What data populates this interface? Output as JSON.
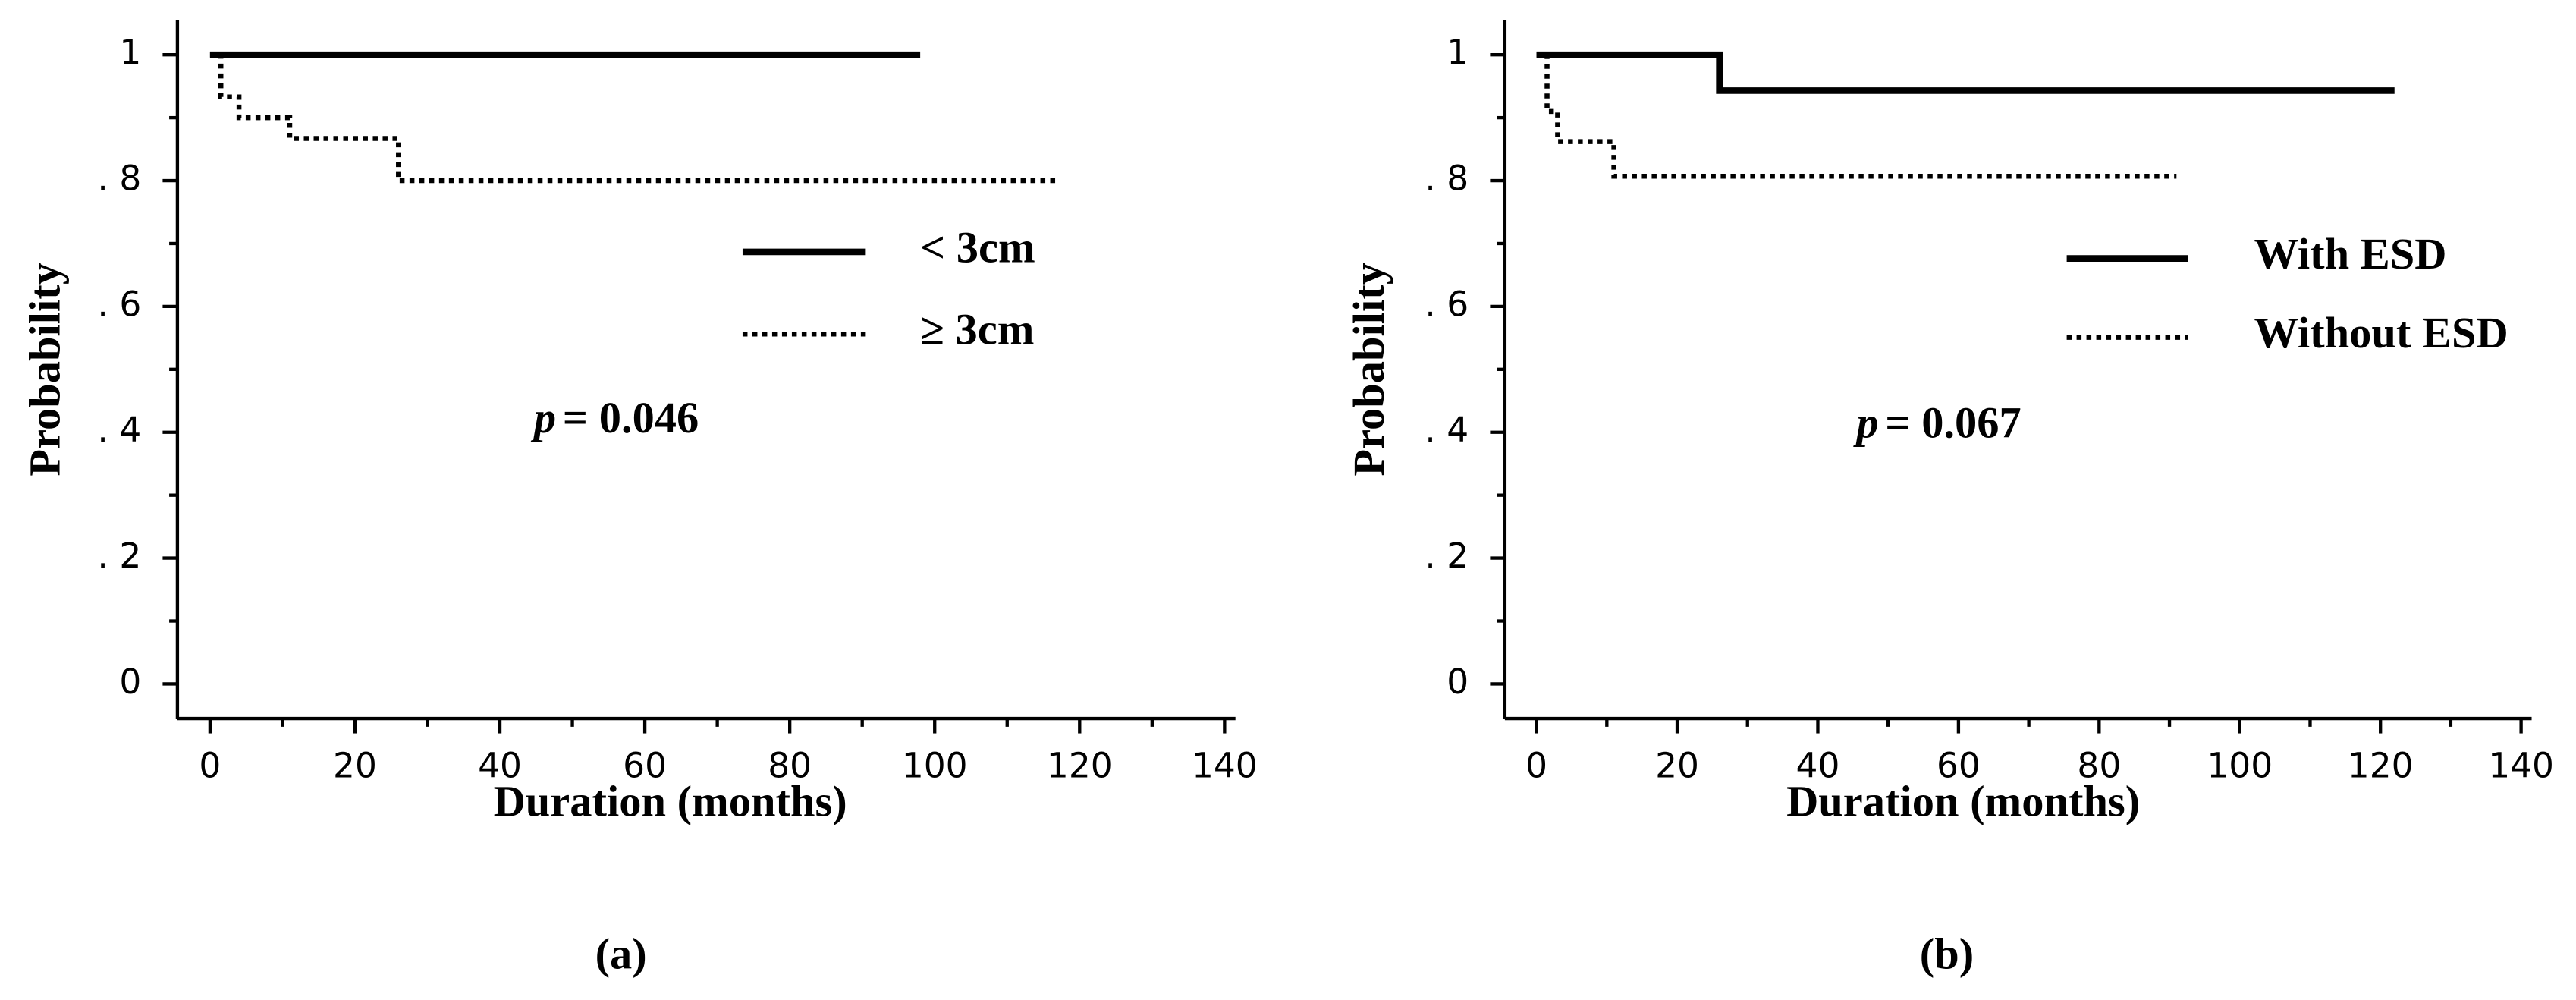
{
  "chart_data": [
    {
      "type": "line",
      "label": "(a)",
      "xlabel": "Duration (months)",
      "ylabel": "Probability",
      "xlim": [
        -4.5,
        141.5
      ],
      "ylim": [
        -0.055,
        1.055
      ],
      "xticks": [
        0,
        20,
        40,
        60,
        80,
        100,
        120,
        140
      ],
      "xminorticks": [
        10,
        30,
        50,
        70,
        90,
        110,
        130
      ],
      "yticks": [
        0,
        {
          "value": 0.2,
          "label": ". 2"
        },
        {
          "value": 0.4,
          "label": ". 4"
        },
        {
          "value": 0.6,
          "label": ". 6"
        },
        {
          "value": 0.8,
          "label": ". 8"
        },
        1
      ],
      "yminorticks": [
        0.1,
        0.3,
        0.5,
        0.7,
        0.9
      ],
      "pvalue_symbol": "p",
      "pvalue_text": "= 0.046",
      "series": [
        {
          "name": "< 3cm",
          "color": "#000000",
          "linestyle": "solid",
          "x": [
            0,
            98
          ],
          "values": [
            1,
            1
          ]
        },
        {
          "name": "≥ 3cm",
          "color": "#000000",
          "linestyle": "dotted",
          "x": [
            0,
            1.5,
            1.5,
            4,
            4,
            11,
            11,
            26,
            26,
            117
          ],
          "values": [
            1,
            1,
            0.933,
            0.933,
            0.9,
            0.9,
            0.867,
            0.867,
            0.8,
            0.8
          ]
        }
      ]
    },
    {
      "type": "line",
      "label": "(b)",
      "xlabel": "Duration (months)",
      "ylabel": "Probability",
      "xlim": [
        -4.5,
        141.5
      ],
      "ylim": [
        -0.055,
        1.055
      ],
      "xticks": [
        0,
        20,
        40,
        60,
        80,
        100,
        120,
        140
      ],
      "xminorticks": [
        10,
        30,
        50,
        70,
        90,
        110,
        130
      ],
      "yticks": [
        0,
        {
          "value": 0.2,
          "label": ". 2"
        },
        {
          "value": 0.4,
          "label": ". 4"
        },
        {
          "value": 0.6,
          "label": ". 6"
        },
        {
          "value": 0.8,
          "label": ". 8"
        },
        1
      ],
      "yminorticks": [
        0.1,
        0.3,
        0.5,
        0.7,
        0.9
      ],
      "pvalue_symbol": "p",
      "pvalue_text": "= 0.067",
      "series": [
        {
          "name": "With ESD",
          "color": "#000000",
          "linestyle": "solid",
          "x": [
            0,
            26,
            26,
            122
          ],
          "values": [
            1,
            1,
            0.943,
            0.943
          ]
        },
        {
          "name": "Without ESD",
          "color": "#000000",
          "linestyle": "dotted",
          "x": [
            0,
            1.5,
            1.5,
            3,
            3,
            11,
            11,
            91
          ],
          "values": [
            1,
            1,
            0.91,
            0.91,
            0.862,
            0.862,
            0.807,
            0.807
          ]
        }
      ]
    }
  ]
}
